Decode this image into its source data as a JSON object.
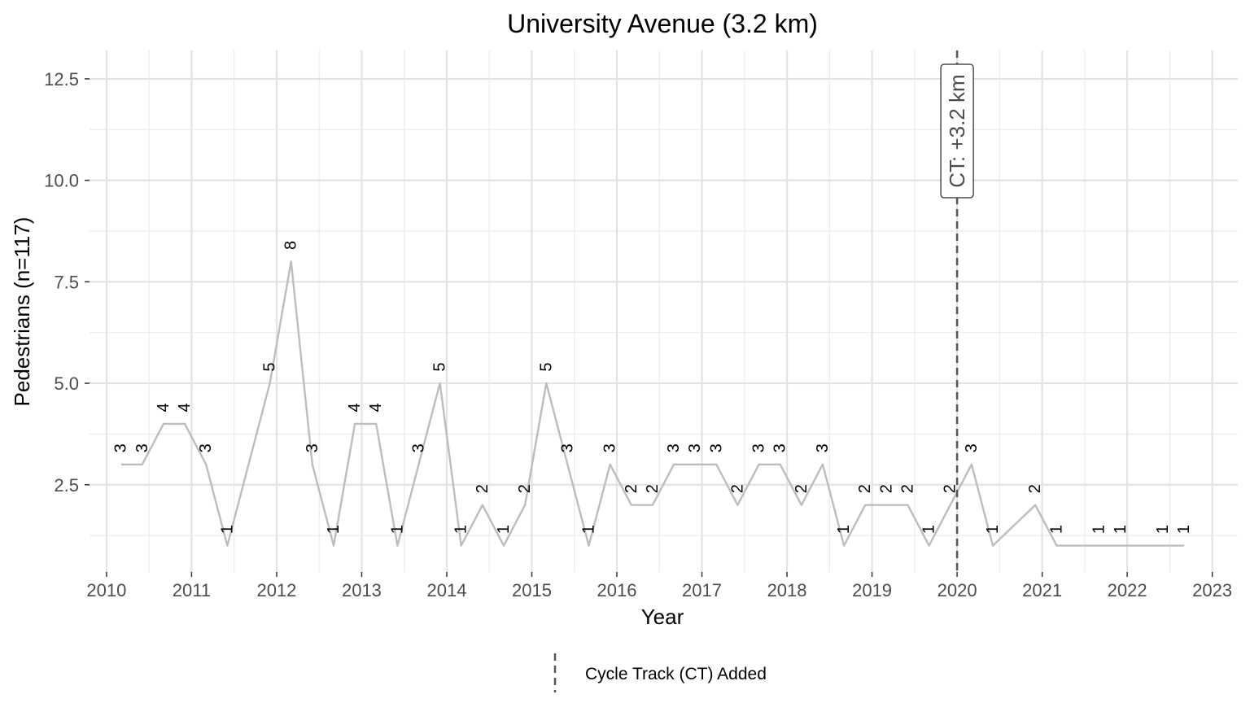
{
  "chart_data": {
    "type": "line",
    "title": "University Avenue (3.2 km)",
    "xlabel": "Year",
    "ylabel": "Pedestrians (n=117)",
    "xlim": [
      2009.8,
      2023.3
    ],
    "ylim": [
      0.35,
      13.2
    ],
    "x_ticks": [
      2010,
      2011,
      2012,
      2013,
      2014,
      2015,
      2016,
      2017,
      2018,
      2019,
      2020,
      2021,
      2022,
      2023
    ],
    "x_tick_labels": [
      "2010",
      "2011",
      "2012",
      "2013",
      "2014",
      "2015",
      "2016",
      "2017",
      "2018",
      "2019",
      "2020",
      "2021",
      "2022",
      "2023"
    ],
    "y_ticks": [
      2.5,
      5.0,
      7.5,
      10.0,
      12.5
    ],
    "y_tick_labels": [
      "2.5",
      "5.0",
      "7.5",
      "10.0",
      "12.5"
    ],
    "grid": true,
    "line_color": "#bdbdbd",
    "series": [
      {
        "points": [
          {
            "x": 2010.17,
            "y": 3
          },
          {
            "x": 2010.42,
            "y": 3
          },
          {
            "x": 2010.67,
            "y": 4
          },
          {
            "x": 2010.92,
            "y": 4
          },
          {
            "x": 2011.17,
            "y": 3
          },
          {
            "x": 2011.42,
            "y": 1
          },
          {
            "x": 2011.92,
            "y": 5
          },
          {
            "x": 2012.17,
            "y": 8
          },
          {
            "x": 2012.42,
            "y": 3
          },
          {
            "x": 2012.67,
            "y": 1
          },
          {
            "x": 2012.92,
            "y": 4
          },
          {
            "x": 2013.17,
            "y": 4
          },
          {
            "x": 2013.42,
            "y": 1
          },
          {
            "x": 2013.67,
            "y": 3
          },
          {
            "x": 2013.92,
            "y": 5
          },
          {
            "x": 2014.17,
            "y": 1
          },
          {
            "x": 2014.42,
            "y": 2
          },
          {
            "x": 2014.67,
            "y": 1
          },
          {
            "x": 2014.92,
            "y": 2
          },
          {
            "x": 2015.17,
            "y": 5
          },
          {
            "x": 2015.42,
            "y": 3
          },
          {
            "x": 2015.67,
            "y": 1
          },
          {
            "x": 2015.92,
            "y": 3
          },
          {
            "x": 2016.17,
            "y": 2
          },
          {
            "x": 2016.42,
            "y": 2
          },
          {
            "x": 2016.67,
            "y": 3
          },
          {
            "x": 2016.92,
            "y": 3
          },
          {
            "x": 2017.17,
            "y": 3
          },
          {
            "x": 2017.42,
            "y": 2
          },
          {
            "x": 2017.67,
            "y": 3
          },
          {
            "x": 2017.92,
            "y": 3
          },
          {
            "x": 2018.17,
            "y": 2
          },
          {
            "x": 2018.42,
            "y": 3
          },
          {
            "x": 2018.67,
            "y": 1
          },
          {
            "x": 2018.92,
            "y": 2
          },
          {
            "x": 2019.17,
            "y": 2
          },
          {
            "x": 2019.42,
            "y": 2
          },
          {
            "x": 2019.67,
            "y": 1
          },
          {
            "x": 2019.92,
            "y": 2
          },
          {
            "x": 2020.17,
            "y": 3
          },
          {
            "x": 2020.42,
            "y": 1
          },
          {
            "x": 2020.92,
            "y": 2
          },
          {
            "x": 2021.17,
            "y": 1
          },
          {
            "x": 2021.67,
            "y": 1
          },
          {
            "x": 2021.92,
            "y": 1
          },
          {
            "x": 2022.42,
            "y": 1
          },
          {
            "x": 2022.67,
            "y": 1
          }
        ]
      }
    ],
    "data_labels": [
      "3",
      "3",
      "4",
      "4",
      "3",
      "1",
      "5",
      "8",
      "3",
      "1",
      "4",
      "4",
      "1",
      "3",
      "5",
      "1",
      "2",
      "1",
      "2",
      "5",
      "3",
      "1",
      "3",
      "2",
      "2",
      "3",
      "3",
      "3",
      "2",
      "3",
      "3",
      "2",
      "3",
      "1",
      "2",
      "2",
      "2",
      "1",
      "2",
      "3",
      "1",
      "2",
      "1",
      "1",
      "1",
      "1",
      "1"
    ],
    "vline": {
      "x": 2020.0,
      "style": "dashed",
      "color": "#555555",
      "label": "CT: +3.2 km"
    },
    "legend": {
      "position": "bottom",
      "label": "Cycle Track (CT) Added"
    }
  }
}
